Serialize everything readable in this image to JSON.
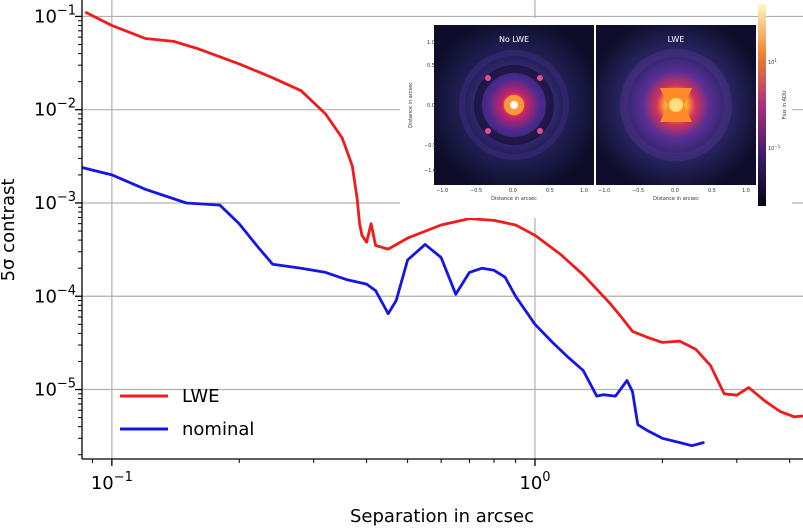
{
  "chart_data": {
    "type": "line",
    "xlabel": "Separation in arcsec",
    "ylabel": "5σ contrast",
    "xscale": "log",
    "yscale": "log",
    "xlim": [
      0.085,
      4.3
    ],
    "ylim": [
      1.8e-06,
      0.15
    ],
    "grid": true,
    "legend_position": "bottom-left",
    "x_ticks": [
      {
        "value": 0.1,
        "base": "10",
        "exp": "−1"
      },
      {
        "value": 1,
        "base": "10",
        "exp": "0"
      }
    ],
    "y_ticks": [
      {
        "value": 0.1,
        "base": "10",
        "exp": "−1"
      },
      {
        "value": 0.01,
        "base": "10",
        "exp": "−2"
      },
      {
        "value": 0.001,
        "base": "10",
        "exp": "−3"
      },
      {
        "value": 0.0001,
        "base": "10",
        "exp": "−4"
      },
      {
        "value": 1e-05,
        "base": "10",
        "exp": "−5"
      }
    ],
    "series": [
      {
        "name": "LWE",
        "color": "#ee1c1c",
        "x": [
          0.087,
          0.1,
          0.12,
          0.14,
          0.16,
          0.2,
          0.24,
          0.28,
          0.32,
          0.35,
          0.37,
          0.38,
          0.385,
          0.39,
          0.4,
          0.41,
          0.42,
          0.45,
          0.5,
          0.6,
          0.7,
          0.8,
          0.9,
          1.0,
          1.15,
          1.3,
          1.5,
          1.6,
          1.7,
          1.85,
          2.0,
          2.2,
          2.4,
          2.6,
          2.8,
          3.0,
          3.2,
          3.5,
          3.8,
          4.1,
          4.3
        ],
        "values": [
          0.11,
          0.08,
          0.058,
          0.054,
          0.045,
          0.031,
          0.022,
          0.016,
          0.009,
          0.005,
          0.0025,
          0.0011,
          0.0006,
          0.00045,
          0.00038,
          0.0006,
          0.00035,
          0.00032,
          0.00042,
          0.00058,
          0.00068,
          0.00065,
          0.00058,
          0.00045,
          0.00028,
          0.00017,
          8.5e-05,
          6e-05,
          4.2e-05,
          3.6e-05,
          3.2e-05,
          3.3e-05,
          2.7e-05,
          1.8e-05,
          9e-06,
          8.7e-06,
          1.05e-05,
          7.5e-06,
          5.8e-06,
          5.1e-06,
          5.2e-06
        ]
      },
      {
        "name": "nominal",
        "color": "#1515e6",
        "x": [
          0.085,
          0.1,
          0.12,
          0.15,
          0.18,
          0.2,
          0.22,
          0.24,
          0.28,
          0.32,
          0.36,
          0.4,
          0.42,
          0.45,
          0.47,
          0.5,
          0.55,
          0.6,
          0.65,
          0.7,
          0.75,
          0.8,
          0.85,
          0.9,
          1.0,
          1.1,
          1.2,
          1.3,
          1.4,
          1.45,
          1.55,
          1.65,
          1.7,
          1.75,
          1.85,
          2.0,
          2.2,
          2.35,
          2.5
        ],
        "values": [
          0.0024,
          0.002,
          0.0014,
          0.001,
          0.00095,
          0.0006,
          0.00035,
          0.00022,
          0.0002,
          0.00018,
          0.00015,
          0.000135,
          0.000115,
          6.5e-05,
          9e-05,
          0.000245,
          0.00036,
          0.00026,
          0.000105,
          0.00018,
          0.0002,
          0.00019,
          0.00016,
          0.0001,
          5e-05,
          3.2e-05,
          2.2e-05,
          1.6e-05,
          8.5e-06,
          8.8e-06,
          8.5e-06,
          1.25e-05,
          9.5e-06,
          4.2e-06,
          3.6e-06,
          3e-06,
          2.7e-06,
          2.5e-06,
          2.7e-06
        ]
      }
    ],
    "inset": {
      "panels": [
        {
          "title": "No LWE"
        },
        {
          "title": "LWE"
        }
      ],
      "axis_label_x": "Distance in arcsec",
      "axis_label_y": "Distance in arcsec",
      "colorbar_label": "Flux in ADU"
    }
  }
}
